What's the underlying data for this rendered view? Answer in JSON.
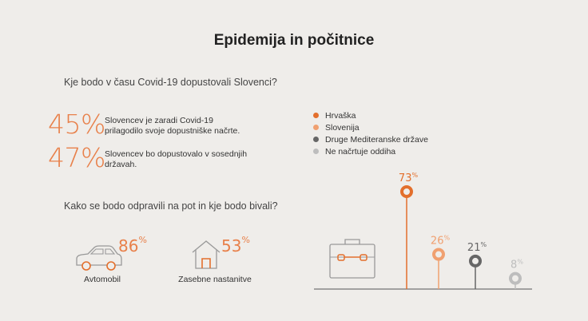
{
  "title": "Epidemija in počitnice",
  "question1": "Kje bodo v času Covid-19 dopustovali Slovenci?",
  "stats": [
    {
      "value": "45%",
      "text": "Slovencev je zaradi Covid-19 prilagodilo svoje dopustniške načrte."
    },
    {
      "value": "47%",
      "text": "Slovencev bo dopustovalo v sosednjih državah."
    }
  ],
  "question2": "Kako se bodo odpravili na pot in kje bodo bivali?",
  "transport": [
    {
      "value": "86",
      "unit": "%",
      "label": "Avtomobil",
      "icon": "car-icon"
    },
    {
      "value": "53",
      "unit": "%",
      "label": "Zasebne nastanitve",
      "icon": "house-icon"
    }
  ],
  "colors": {
    "orange": "#e36f2c",
    "light_orange": "#f0a070",
    "dark_gray": "#666666",
    "light_gray": "#bdbdbd"
  },
  "chart_data": {
    "type": "lollipop",
    "categories": [
      "Hrvaška",
      "Slovenija",
      "Druge Mediteranske države",
      "Ne načrtuje oddiha"
    ],
    "values": [
      73,
      26,
      21,
      8
    ],
    "unit": "%",
    "legend_position": "top-left",
    "icon": "suitcase-icon"
  }
}
